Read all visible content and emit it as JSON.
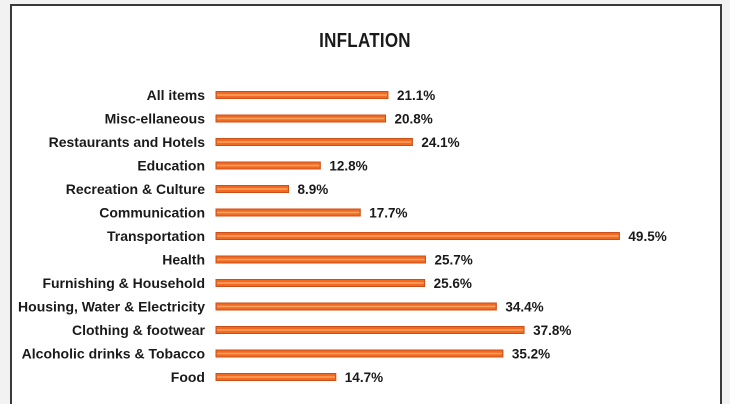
{
  "chart_data": {
    "type": "bar",
    "orientation": "horizontal",
    "title": "INFLATION",
    "categories": [
      "All items",
      "Misc-ellaneous",
      "Restaurants and Hotels",
      "Education",
      "Recreation & Culture",
      "Communication",
      "Transportation",
      "Health",
      "Furnishing & Household",
      "Housing, Water & Electricity",
      "Clothing & footwear",
      "Alcoholic drinks & Tobacco",
      "Food"
    ],
    "values": [
      21.1,
      20.8,
      24.1,
      12.8,
      8.9,
      17.7,
      49.5,
      25.7,
      25.6,
      34.4,
      37.8,
      35.2,
      14.7
    ],
    "value_labels": [
      "21.1%",
      "20.8%",
      "24.1%",
      "12.8%",
      "8.9%",
      "17.7%",
      "49.5%",
      "25.7%",
      "25.6%",
      "34.4%",
      "37.8%",
      "35.2%",
      "14.7%"
    ],
    "xlabel": "",
    "ylabel": "",
    "xlim": [
      0,
      50
    ],
    "grid": false,
    "legend": "none",
    "colors": {
      "bar": "#f26a21",
      "bar_edge": "#c9501a",
      "bar_highlight": "#f7a15e"
    }
  }
}
